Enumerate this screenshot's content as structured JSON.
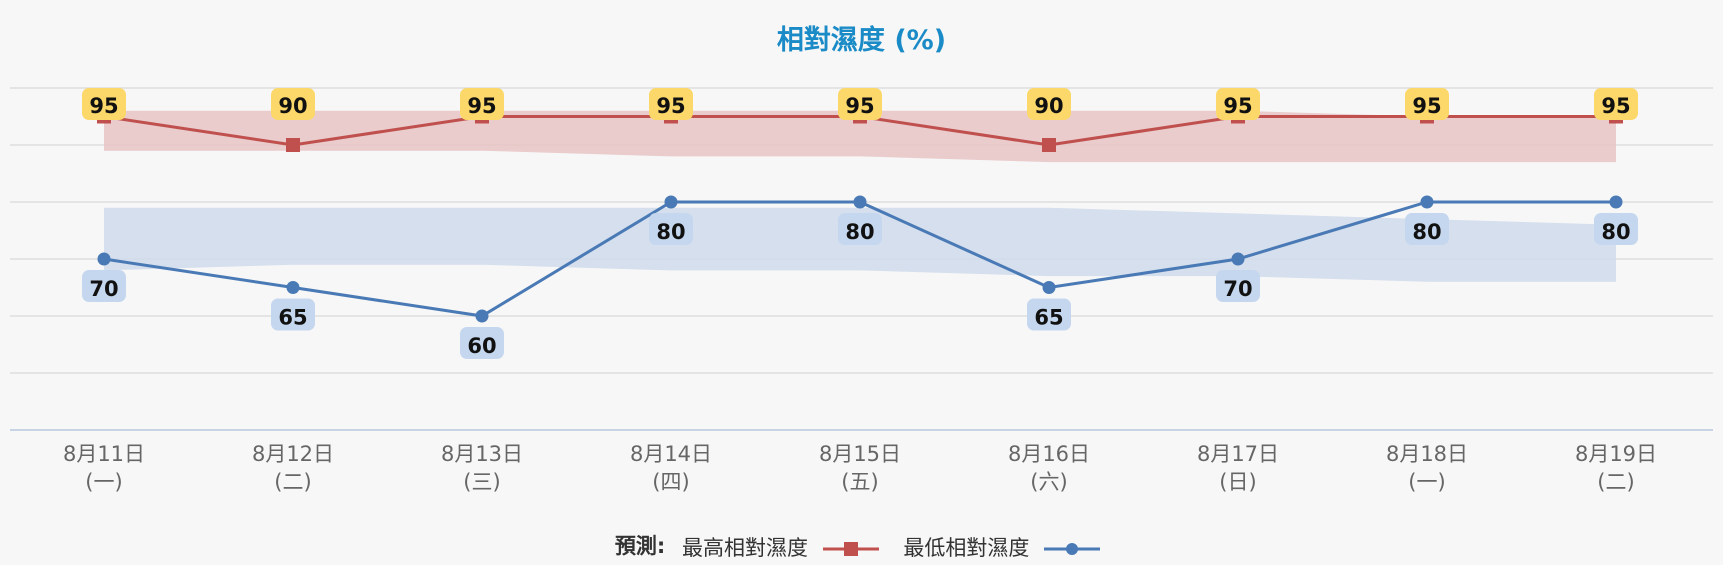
{
  "chart_data": {
    "type": "line",
    "title": "相對濕度 (%)",
    "xlabel": "",
    "ylabel": "",
    "ylim": [
      40,
      100
    ],
    "yticks": [
      40,
      50,
      60,
      70,
      80,
      90,
      100
    ],
    "grid": true,
    "legend_position": "bottom",
    "categories": [
      {
        "date": "8月11日",
        "weekday": "(一)"
      },
      {
        "date": "8月12日",
        "weekday": "(二)"
      },
      {
        "date": "8月13日",
        "weekday": "(三)"
      },
      {
        "date": "8月14日",
        "weekday": "(四)"
      },
      {
        "date": "8月15日",
        "weekday": "(五)"
      },
      {
        "date": "8月16日",
        "weekday": "(六)"
      },
      {
        "date": "8月17日",
        "weekday": "(日)"
      },
      {
        "date": "8月18日",
        "weekday": "(一)"
      },
      {
        "date": "8月19日",
        "weekday": "(二)"
      }
    ],
    "series": [
      {
        "name": "最高相對濕度",
        "color": "#c0504d",
        "marker": "square",
        "label_bg": "#fcd86a",
        "values": [
          95,
          90,
          95,
          95,
          95,
          90,
          95,
          95,
          95
        ],
        "band": {
          "color": "#e8c4c6",
          "upper": [
            96,
            96,
            96,
            96,
            96,
            96,
            96,
            95,
            95
          ],
          "lower": [
            89,
            89,
            89,
            88,
            88,
            87,
            87,
            87,
            87
          ]
        }
      },
      {
        "name": "最低相對濕度",
        "color": "#4a7ab5",
        "marker": "circle",
        "label_bg": "#c5d7ef",
        "values": [
          70,
          65,
          60,
          80,
          80,
          65,
          70,
          80,
          80
        ],
        "band": {
          "color": "#cfdbeb",
          "upper": [
            79,
            79,
            79,
            79,
            79,
            79,
            78,
            77,
            76
          ],
          "lower": [
            68,
            69,
            69,
            68,
            68,
            67,
            67,
            66,
            66
          ]
        }
      }
    ]
  },
  "legend": {
    "prefix": "預測:",
    "items": [
      "最高相對濕度",
      "最低相對濕度"
    ]
  },
  "colors": {
    "title": "#1a8bc6",
    "max_line": "#c0504d",
    "min_line": "#4a7ab5",
    "grid": "#d8d8d8",
    "axis": "#c8d4e4"
  }
}
